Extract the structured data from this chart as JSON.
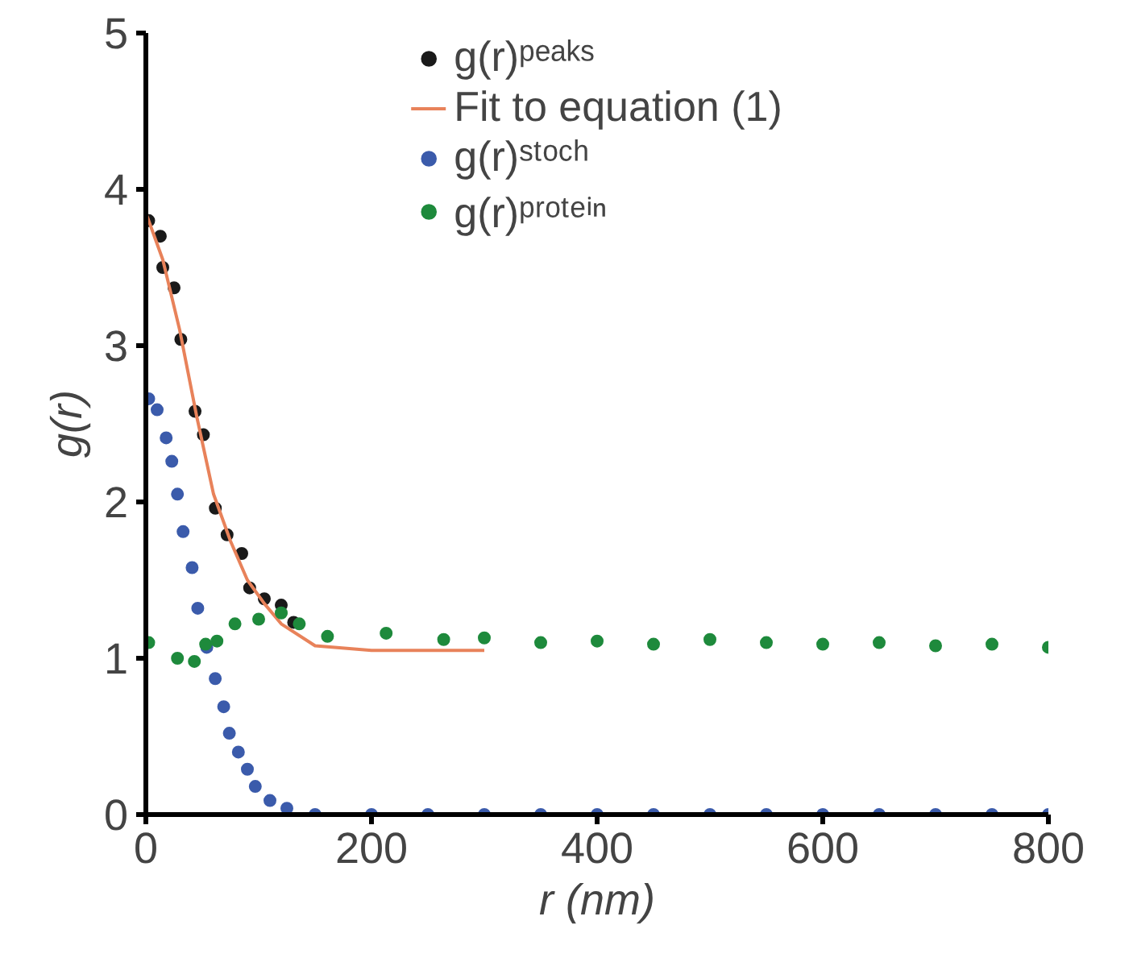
{
  "chart_data": {
    "type": "scatter",
    "xlabel": "r (nm)",
    "ylabel": "g(r)",
    "xlim": [
      0,
      800
    ],
    "ylim": [
      0,
      5
    ],
    "xticks": [
      0,
      200,
      400,
      600,
      800
    ],
    "yticks": [
      0,
      1,
      2,
      3,
      4,
      5
    ],
    "grid": false,
    "legend": "top",
    "series": [
      {
        "name": "g(r)ᵖᵉᵃᵏˢ",
        "color": "#1a1a1a",
        "marker": "circle",
        "x": [
          2.5,
          12.8,
          15,
          25,
          31,
          43.6,
          51,
          61.6,
          72,
          85,
          92,
          105,
          120,
          131
        ],
        "values": [
          3.8,
          3.7,
          3.5,
          3.37,
          3.04,
          2.58,
          2.43,
          1.96,
          1.79,
          1.67,
          1.45,
          1.38,
          1.34,
          1.23
        ]
      },
      {
        "name": "Fit to equation (1)",
        "type": "line",
        "color": "#e8825a",
        "x": [
          0,
          15,
          30,
          45,
          60,
          75,
          90,
          105,
          120,
          150,
          200,
          300
        ],
        "values": [
          3.85,
          3.55,
          3.1,
          2.55,
          2.05,
          1.75,
          1.5,
          1.35,
          1.22,
          1.08,
          1.05,
          1.05
        ]
      },
      {
        "name": "g(r)ˢᵗᵒᶜʰ",
        "color": "#3b5bab",
        "marker": "circle",
        "x": [
          2.5,
          10,
          18,
          23,
          28,
          33,
          41,
          46,
          54,
          61.5,
          69,
          74,
          82,
          90,
          97,
          110,
          125,
          150,
          200,
          250,
          300,
          350,
          400,
          450,
          500,
          550,
          600,
          650,
          700,
          750,
          800
        ],
        "values": [
          2.66,
          2.59,
          2.41,
          2.26,
          2.05,
          1.81,
          1.58,
          1.32,
          1.07,
          0.87,
          0.69,
          0.52,
          0.4,
          0.29,
          0.18,
          0.09,
          0.04,
          0,
          0,
          0,
          0,
          0,
          0,
          0,
          0,
          0,
          0,
          0,
          0,
          0,
          0
        ]
      },
      {
        "name": "g(r)ᵖʳᵒᵗᵉⁱⁿ",
        "color": "#1e8a3c",
        "marker": "circle",
        "x": [
          2.5,
          28,
          43,
          53,
          63,
          79,
          100,
          120,
          136,
          161,
          213,
          264,
          300,
          350,
          400,
          450,
          500,
          550,
          600,
          650,
          700,
          750,
          800
        ],
        "values": [
          1.1,
          1.0,
          0.98,
          1.09,
          1.11,
          1.22,
          1.25,
          1.29,
          1.22,
          1.14,
          1.16,
          1.12,
          1.13,
          1.1,
          1.11,
          1.09,
          1.12,
          1.1,
          1.09,
          1.1,
          1.08,
          1.09,
          1.07
        ]
      }
    ]
  }
}
